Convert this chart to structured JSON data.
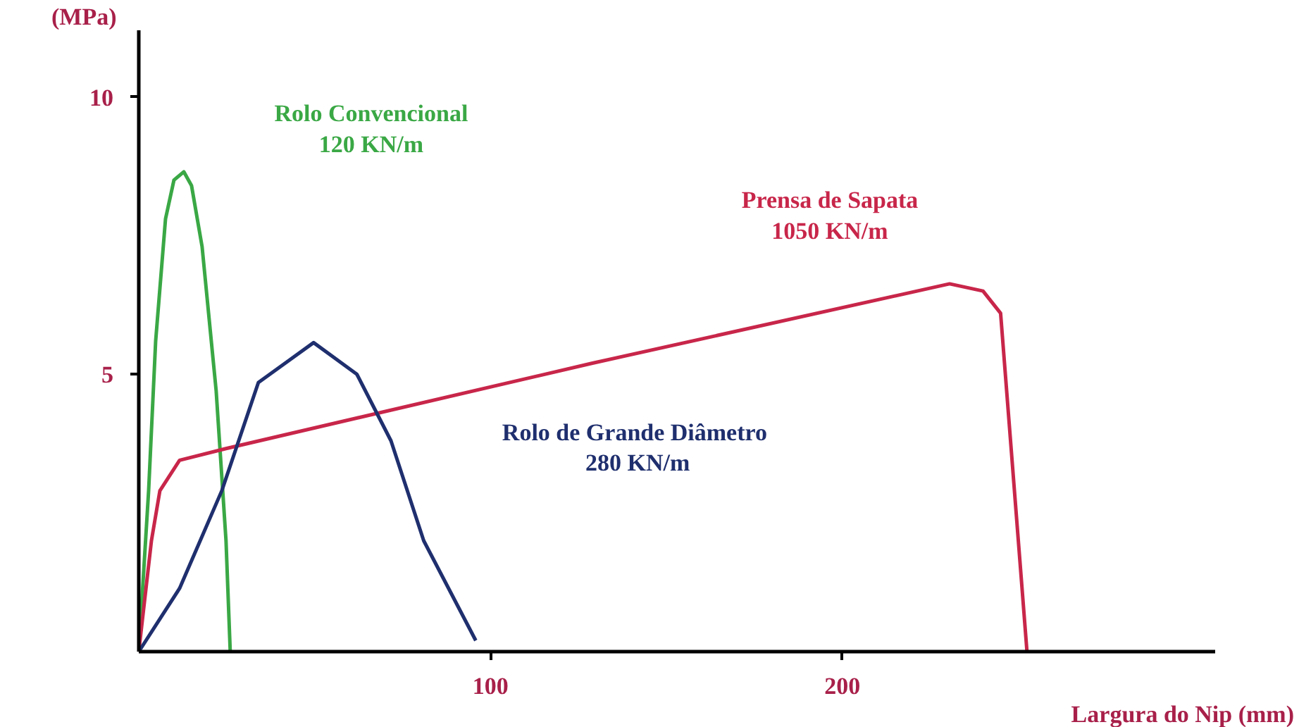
{
  "chart_data": {
    "type": "line",
    "xlabel": "Largura do Nip (mm)",
    "ylabel": "(MPa)",
    "xlim": [
      0,
      306
    ],
    "ylim": [
      0,
      11.2
    ],
    "xticks": [
      100,
      200
    ],
    "yticks": [
      5,
      10
    ],
    "grid": false,
    "marker": "none",
    "line_style": "solid",
    "series": [
      {
        "name": "Rolo Convencional\n120 KN/m",
        "color": "#3aa845",
        "x": [
          0,
          2.8,
          4.8,
          7.6,
          10,
          12.8,
          15,
          18,
          22,
          24.8,
          26
        ],
        "values": [
          0,
          2.9,
          5.6,
          7.8,
          8.5,
          8.65,
          8.4,
          7.3,
          4.7,
          2.0,
          0
        ]
      },
      {
        "name": "Prensa de Sapata\n1050 KN/m",
        "color": "#c8264a",
        "x": [
          0,
          3.6,
          6,
          11.6,
          24.8,
          129,
          230.5,
          240,
          245,
          252.5
        ],
        "values": [
          0,
          2.0,
          2.9,
          3.45,
          3.66,
          5.2,
          6.63,
          6.5,
          6.1,
          0
        ]
      },
      {
        "name": "Rolo  de Grande Diâmetro\n280 KN/m",
        "color": "#1f2f6e",
        "x": [
          0,
          11.6,
          23.6,
          34,
          49.7,
          62,
          71.7,
          81,
          95.8
        ],
        "values": [
          0,
          1.14,
          2.9,
          4.85,
          5.57,
          5.0,
          3.8,
          2.0,
          0.2
        ]
      }
    ]
  }
}
